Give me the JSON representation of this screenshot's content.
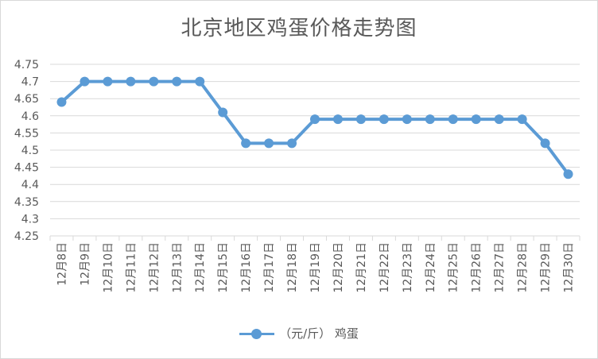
{
  "chart_data": {
    "type": "line",
    "title": "北京地区鸡蛋价格走势图",
    "categories": [
      "12月8日",
      "12月9日",
      "12月10日",
      "12月11日",
      "12月12日",
      "12月13日",
      "12月14日",
      "12月15日",
      "12月16日",
      "12月17日",
      "12月18日",
      "12月19日",
      "12月20日",
      "12月21日",
      "12月22日",
      "12月23日",
      "12月24日",
      "12月25日",
      "12月26日",
      "12月27日",
      "12月28日",
      "12月29日",
      "12月30日"
    ],
    "series": [
      {
        "name": "（元/斤） 鸡蛋",
        "color": "#5b9bd5",
        "values": [
          4.64,
          4.7,
          4.7,
          4.7,
          4.7,
          4.7,
          4.7,
          4.61,
          4.52,
          4.52,
          4.52,
          4.59,
          4.59,
          4.59,
          4.59,
          4.59,
          4.59,
          4.59,
          4.59,
          4.59,
          4.59,
          4.52,
          4.43
        ]
      }
    ],
    "xlabel": "",
    "ylabel": "",
    "ylim": [
      4.25,
      4.75
    ],
    "yticks": [
      "4.25",
      "4.3",
      "4.35",
      "4.4",
      "4.45",
      "4.5",
      "4.55",
      "4.6",
      "4.65",
      "4.7",
      "4.75"
    ],
    "grid": true,
    "gridColor": "#d9d9d9",
    "legend": "bottom"
  }
}
